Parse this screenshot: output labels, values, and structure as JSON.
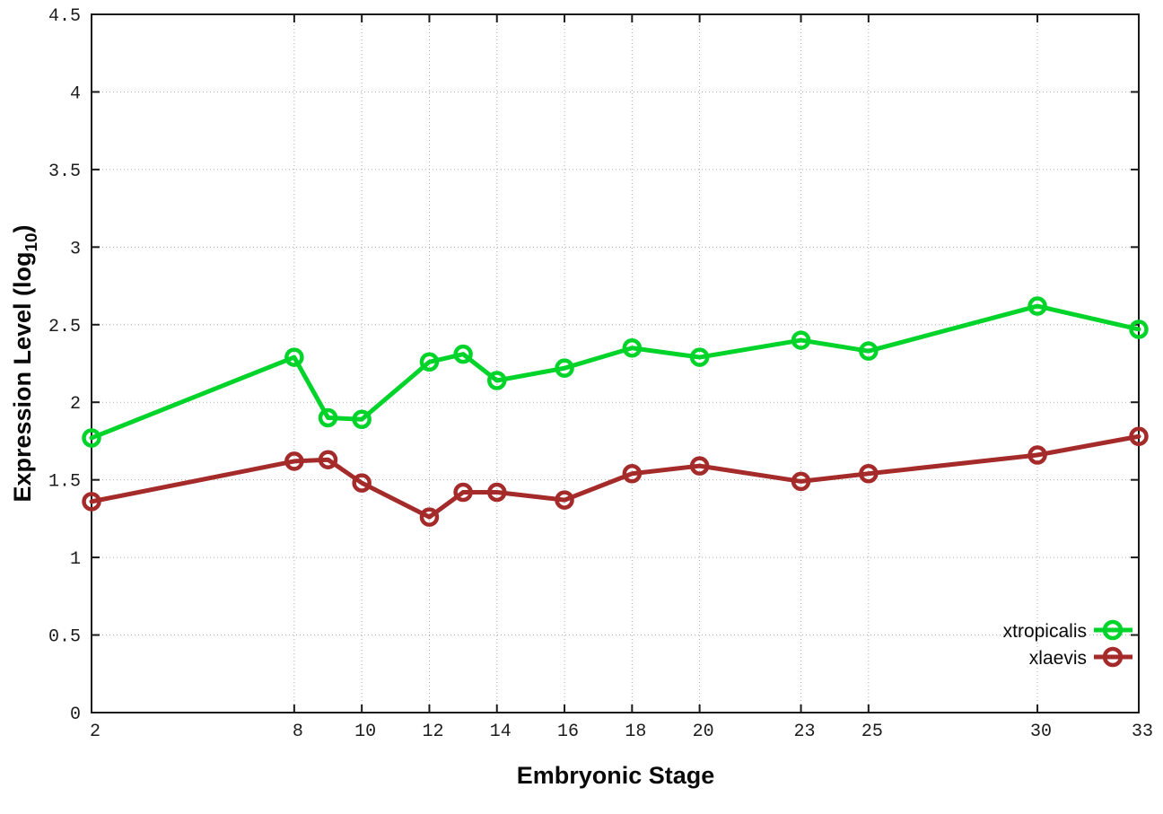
{
  "chart_data": {
    "type": "line",
    "x": [
      2,
      8,
      9,
      10,
      12,
      13,
      14,
      16,
      18,
      20,
      23,
      25,
      30,
      33
    ],
    "series": [
      {
        "name": "xtropicalis",
        "color": "#00d42a",
        "values": [
          1.77,
          2.29,
          1.9,
          1.89,
          2.26,
          2.31,
          2.14,
          2.22,
          2.35,
          2.29,
          2.4,
          2.33,
          2.62,
          2.47
        ]
      },
      {
        "name": "xlaevis",
        "color": "#a52a2a",
        "values": [
          1.36,
          1.62,
          1.63,
          1.48,
          1.26,
          1.42,
          1.42,
          1.37,
          1.54,
          1.59,
          1.49,
          1.54,
          1.66,
          1.78
        ]
      }
    ],
    "title": "",
    "xlabel": "Embryonic Stage",
    "ylabel": "Expression Level (log10)",
    "ylabel_parts": {
      "main": "Expression Level (log",
      "sub": "10",
      "close": ")"
    },
    "x_ticks": [
      2,
      8,
      10,
      12,
      14,
      16,
      18,
      20,
      23,
      25,
      30,
      33
    ],
    "y_ticks": [
      0,
      0.5,
      1,
      1.5,
      2,
      2.5,
      3,
      3.5,
      4,
      4.5
    ],
    "xlim": [
      2,
      33
    ],
    "ylim": [
      0,
      4.5
    ],
    "grid": true,
    "legend_position": "bottom-right",
    "marker": "open-circle"
  },
  "colors": {
    "background": "#ffffff",
    "axis": "#1a1a1a",
    "grid": "#aaaaaa",
    "tick_text": "#1c1c1c",
    "label_text": "#0a0a0a",
    "series_green": "#00d42a",
    "series_red": "#a52a2a"
  }
}
